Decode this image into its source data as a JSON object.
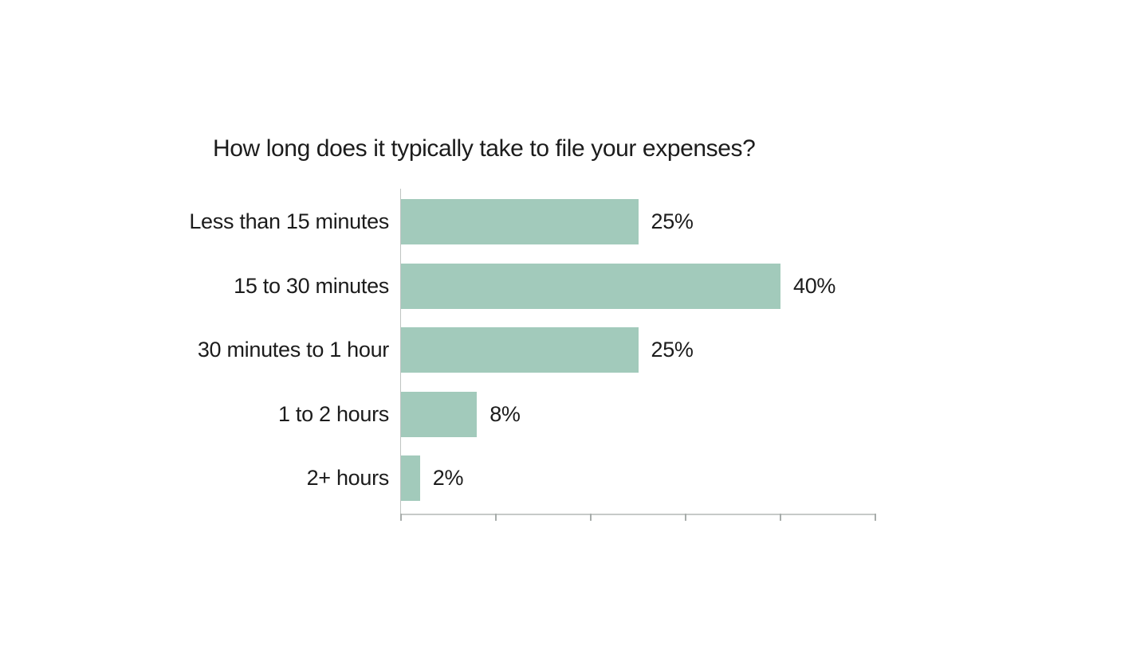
{
  "page": {
    "background_color": "#ffffff"
  },
  "chart_data": {
    "type": "bar",
    "orientation": "horizontal",
    "title": "How long does it typically take to file your expenses?",
    "categories": [
      "Less than 15 minutes",
      "15 to 30 minutes",
      "30 minutes to 1 hour",
      "1 to 2 hours",
      "2+ hours"
    ],
    "values": [
      25,
      40,
      25,
      8,
      2
    ],
    "value_labels": [
      "25%",
      "40%",
      "25%",
      "8%",
      "2%"
    ],
    "xlabel": "",
    "ylabel": "",
    "xlim": [
      0,
      50
    ],
    "x_tick_step": 10,
    "x_tick_labels_visible": false,
    "grid": false,
    "legend": "none",
    "bar_color": "#a2cabb",
    "axis_line_color": "#c6cac8",
    "tick_color": "#a8adab",
    "text_color": "#1c1c1c"
  }
}
